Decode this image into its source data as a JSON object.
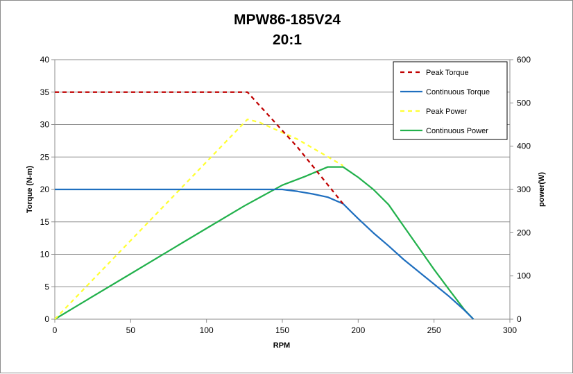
{
  "chart_data": {
    "type": "line",
    "title": "MPW86-185V24",
    "subtitle": "20:1",
    "xlabel": "RPM",
    "ylabel": "Torque (N-m)",
    "y2label": "power(W)",
    "xlim": [
      0,
      300
    ],
    "ylim": [
      0,
      40
    ],
    "y2lim": [
      0,
      600
    ],
    "xticks": [
      0,
      50,
      100,
      150,
      200,
      250,
      300
    ],
    "yticks": [
      0,
      5,
      10,
      15,
      20,
      25,
      30,
      35,
      40
    ],
    "y2ticks": [
      0,
      100,
      200,
      300,
      400,
      500,
      600
    ],
    "grid": "horizontal",
    "legend_position": "top-right",
    "series": [
      {
        "name": "Peak Torque",
        "axis": "left",
        "color": "#c00000",
        "style": "dashed",
        "points": [
          [
            0,
            35
          ],
          [
            127,
            35
          ],
          [
            160,
            26.5
          ],
          [
            190,
            17.8
          ]
        ]
      },
      {
        "name": "Continuous Torque",
        "axis": "left",
        "color": "#1f6fbf",
        "style": "solid",
        "points": [
          [
            0,
            20
          ],
          [
            150,
            20
          ],
          [
            160,
            19.7
          ],
          [
            170,
            19.3
          ],
          [
            180,
            18.8
          ],
          [
            190,
            17.8
          ],
          [
            200,
            15.5
          ],
          [
            210,
            13.3
          ],
          [
            220,
            11.3
          ],
          [
            230,
            9.2
          ],
          [
            240,
            7.3
          ],
          [
            250,
            5.4
          ],
          [
            260,
            3.5
          ],
          [
            270,
            1.4
          ],
          [
            276,
            0
          ]
        ]
      },
      {
        "name": "Peak Power",
        "axis": "right",
        "color": "#ffff33",
        "style": "dashed",
        "points": [
          [
            0,
            0
          ],
          [
            127,
            462
          ],
          [
            135,
            455
          ],
          [
            160,
            416
          ],
          [
            190,
            355
          ]
        ]
      },
      {
        "name": "Continuous Power",
        "axis": "right",
        "color": "#22b14c",
        "style": "solid",
        "points": [
          [
            0,
            0
          ],
          [
            20,
            42
          ],
          [
            50,
            105
          ],
          [
            80,
            168
          ],
          [
            100,
            210
          ],
          [
            125,
            262
          ],
          [
            150,
            310
          ],
          [
            165,
            330
          ],
          [
            180,
            352
          ],
          [
            190,
            352
          ],
          [
            200,
            328
          ],
          [
            210,
            300
          ],
          [
            220,
            265
          ],
          [
            230,
            215
          ],
          [
            240,
            165
          ],
          [
            250,
            115
          ],
          [
            260,
            68
          ],
          [
            270,
            22
          ],
          [
            276,
            0
          ]
        ]
      }
    ]
  }
}
